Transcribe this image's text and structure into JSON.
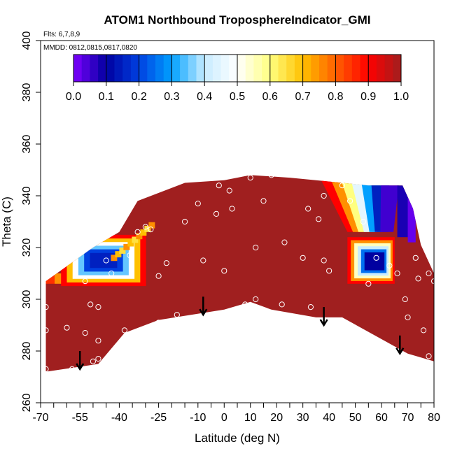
{
  "chart_data": {
    "type": "heatmap",
    "title": "ATOM1 Northbound TroposphereIndicator_GMI",
    "annotations": {
      "flights": "Flts: 6,7,8,9",
      "dates": "MMDD: 0812,0815,0817,0820"
    },
    "xlabel": "Latitude (deg N)",
    "ylabel": "Theta (C)",
    "xlim": [
      -70,
      80
    ],
    "ylim": [
      260,
      400
    ],
    "x_ticks": [
      -70,
      -55,
      -40,
      -25,
      -10,
      0,
      10,
      20,
      30,
      40,
      50,
      60,
      70,
      80
    ],
    "x_tick_labels": [
      "-70",
      "-55",
      "-40",
      "-25",
      "-10",
      "0",
      "10",
      "20",
      "30",
      "40",
      "50",
      "60",
      "70",
      "80"
    ],
    "x_minor_ticks": [
      -65,
      -60,
      -50,
      -45,
      -35,
      -30,
      -20,
      -15,
      -5,
      5,
      15,
      25,
      35,
      45,
      55,
      65,
      75
    ],
    "y_ticks": [
      260,
      280,
      300,
      320,
      340,
      360,
      380,
      400
    ],
    "y_tick_labels": [
      "260",
      "280",
      "300",
      "320",
      "340",
      "360",
      "380",
      "400"
    ],
    "colorbar": {
      "range": [
        0,
        1
      ],
      "ticks": [
        0.0,
        0.1,
        0.2,
        0.3,
        0.4,
        0.5,
        0.6,
        0.7,
        0.8,
        0.9,
        1.0
      ],
      "tick_labels": [
        "0.0",
        "0.1",
        "0.2",
        "0.3",
        "0.4",
        "0.5",
        "0.6",
        "0.7",
        "0.8",
        "0.9",
        "1.0"
      ],
      "stops": [
        "#7f00ff",
        "#0000a0",
        "#0040e0",
        "#00a0ff",
        "#c8ecff",
        "#ffffff",
        "#ffff80",
        "#ffc000",
        "#ff6000",
        "#ff0000",
        "#a01f1f"
      ]
    },
    "background_value": 1.0,
    "region_lower_bound": [
      {
        "lat": -68,
        "theta": 272
      },
      {
        "lat": -48,
        "theta": 275
      },
      {
        "lat": -38,
        "theta": 287
      },
      {
        "lat": -25,
        "theta": 292
      },
      {
        "lat": 0,
        "theta": 296
      },
      {
        "lat": 10,
        "theta": 299
      },
      {
        "lat": 18,
        "theta": 296
      },
      {
        "lat": 35,
        "theta": 293
      },
      {
        "lat": 45,
        "theta": 293
      },
      {
        "lat": 70,
        "theta": 279
      },
      {
        "lat": 80,
        "theta": 276
      }
    ],
    "region_upper_bound": [
      {
        "lat": -68,
        "theta": 307
      },
      {
        "lat": -50,
        "theta": 320
      },
      {
        "lat": -40,
        "theta": 326
      },
      {
        "lat": -33,
        "theta": 338
      },
      {
        "lat": -15,
        "theta": 345
      },
      {
        "lat": 0,
        "theta": 346
      },
      {
        "lat": 10,
        "theta": 348
      },
      {
        "lat": 25,
        "theta": 347
      },
      {
        "lat": 35,
        "theta": 346
      },
      {
        "lat": 55,
        "theta": 344
      },
      {
        "lat": 68,
        "theta": 344
      },
      {
        "lat": 72,
        "theta": 335
      },
      {
        "lat": 75,
        "theta": 321
      },
      {
        "lat": 80,
        "theta": 310
      }
    ],
    "features": [
      {
        "name": "southern-edge-band",
        "lat_start": -68,
        "lat_end": -58,
        "theta_start": 306,
        "theta_end": 310,
        "values": [
          0.85,
          0.75,
          0.65
        ]
      },
      {
        "name": "southern-low-pocket",
        "lat_center": -46,
        "theta_center": 315,
        "values": [
          0.9,
          0.7,
          0.5,
          0.35,
          0.2,
          0.15
        ]
      },
      {
        "name": "northern-upper-tongue",
        "lat_range": [
          37,
          72
        ],
        "theta_range": [
          322,
          346
        ],
        "values": [
          0.9,
          0.75,
          0.6,
          0.45,
          0.3,
          0.15,
          0.05
        ]
      },
      {
        "name": "northern-low-box",
        "lat_range": [
          47,
          65
        ],
        "theta_range": [
          306,
          324
        ],
        "values": [
          0.9,
          0.75,
          0.55,
          0.4,
          0.25,
          0.1
        ]
      }
    ],
    "sample_points": [
      [
        -68,
        297
      ],
      [
        -68,
        288
      ],
      [
        -68,
        273
      ],
      [
        -60,
        289
      ],
      [
        -58,
        273
      ],
      [
        -53,
        307
      ],
      [
        -53,
        287
      ],
      [
        -51,
        298
      ],
      [
        -48,
        297
      ],
      [
        -48,
        284
      ],
      [
        -50,
        276
      ],
      [
        -48,
        277
      ],
      [
        -45,
        315
      ],
      [
        -43,
        310
      ],
      [
        -38,
        288
      ],
      [
        -36,
        317
      ],
      [
        -33,
        326
      ],
      [
        -30,
        328
      ],
      [
        -28,
        327
      ],
      [
        -25,
        309
      ],
      [
        -25,
        291
      ],
      [
        -22,
        314
      ],
      [
        -18,
        294
      ],
      [
        -15,
        330
      ],
      [
        -10,
        337
      ],
      [
        -8,
        315
      ],
      [
        0,
        311
      ],
      [
        -3,
        333
      ],
      [
        2,
        342
      ],
      [
        -2,
        344
      ],
      [
        3,
        335
      ],
      [
        10,
        347
      ],
      [
        15,
        338
      ],
      [
        18,
        348
      ],
      [
        12,
        320
      ],
      [
        8,
        298
      ],
      [
        12,
        300
      ],
      [
        22,
        298
      ],
      [
        23,
        322
      ],
      [
        30,
        316
      ],
      [
        32,
        335
      ],
      [
        38,
        340
      ],
      [
        38,
        315
      ],
      [
        33,
        297
      ],
      [
        36,
        331
      ],
      [
        40,
        311
      ],
      [
        45,
        344
      ],
      [
        48,
        338
      ],
      [
        53,
        330
      ],
      [
        55,
        306
      ],
      [
        58,
        316
      ],
      [
        63,
        313
      ],
      [
        66,
        310
      ],
      [
        69,
        300
      ],
      [
        70,
        293
      ],
      [
        73,
        316
      ],
      [
        74,
        308
      ],
      [
        76,
        288
      ],
      [
        78,
        278
      ],
      [
        78,
        310
      ],
      [
        80,
        307
      ],
      [
        72,
        344
      ]
    ],
    "arrows": [
      {
        "lat": -55,
        "theta_top": 280,
        "theta_bottom": 273
      },
      {
        "lat": -8,
        "theta_top": 301,
        "theta_bottom": 294
      },
      {
        "lat": 38,
        "theta_top": 297,
        "theta_bottom": 290
      },
      {
        "lat": 67,
        "theta_top": 286,
        "theta_bottom": 279
      }
    ]
  }
}
